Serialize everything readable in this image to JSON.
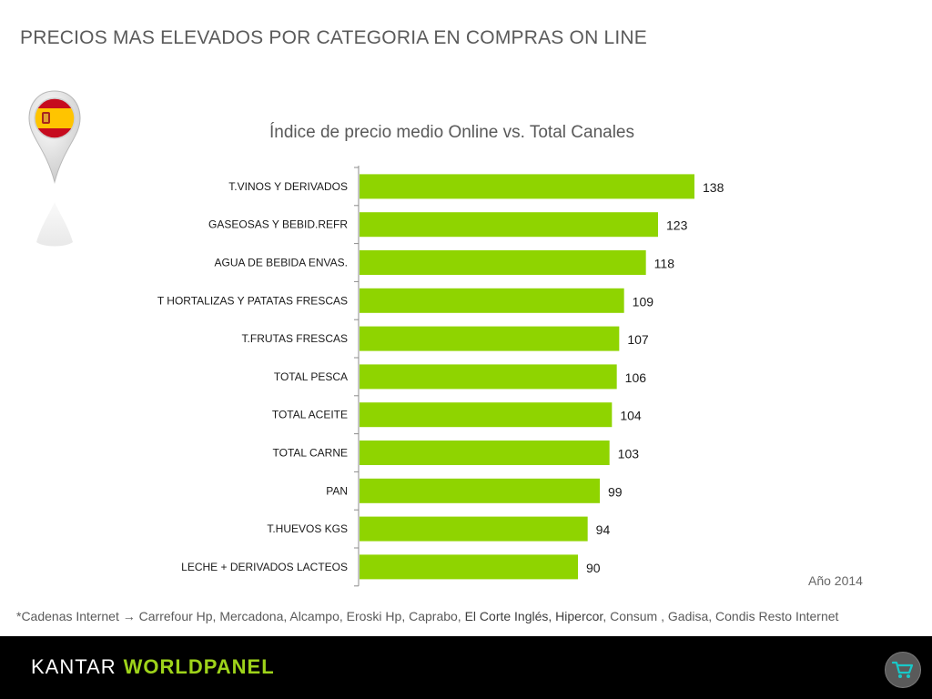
{
  "page": {
    "title": "PRECIOS MAS ELEVADOS POR CATEGORIA EN COMPRAS ON LINE",
    "subtitle": "Índice de precio medio Online vs. Total Canales",
    "year_note": "Año 2014",
    "footnote": {
      "prefix": "*Cadenas Internet ",
      "arrow": "→",
      "part1": " Carrefour Hp, Mercadona, Alcampo, Eroski Hp, Caprabo, ",
      "part2": "El Corte Inglés, Hipercor",
      "part3": ", Consum , Gadisa, Condis Resto Internet"
    }
  },
  "footer": {
    "brand_left": "KANTAR",
    "brand_right": "WORLDPANEL",
    "cart_icon": "shopping-cart-icon"
  },
  "colors": {
    "bar": "#8fd400",
    "footer_bg": "#000000",
    "brand_accent": "#9ed31a",
    "title_text": "#5a5a5a",
    "flag_red": "#c60b1e",
    "flag_yellow": "#ffc400"
  },
  "chart_data": {
    "type": "bar",
    "orientation": "horizontal",
    "categories": [
      "T.VINOS Y DERIVADOS",
      "GASEOSAS Y BEBID.REFR",
      "AGUA DE BEBIDA ENVAS.",
      "T HORTALIZAS Y PATATAS FRESCAS",
      "T.FRUTAS FRESCAS",
      "TOTAL PESCA",
      "TOTAL ACEITE",
      "TOTAL CARNE",
      "PAN",
      "T.HUEVOS KGS",
      "LECHE + DERIVADOS LACTEOS"
    ],
    "values": [
      138,
      123,
      118,
      109,
      107,
      106,
      104,
      103,
      99,
      94,
      90
    ],
    "title": "Índice de precio medio Online vs. Total Canales",
    "xlim": [
      0,
      145
    ],
    "grid": false,
    "legend": "none",
    "data_labels": true
  }
}
